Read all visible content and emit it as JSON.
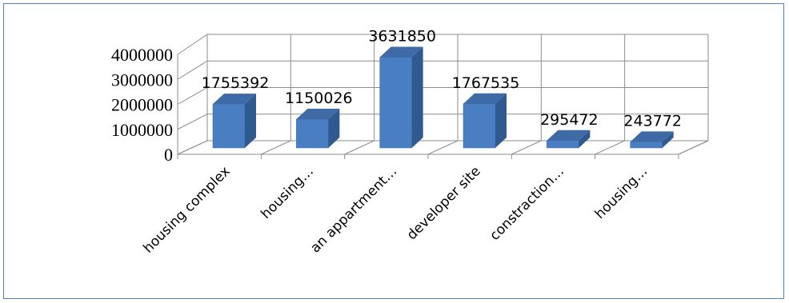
{
  "chart_data": {
    "type": "bar",
    "style": "3d-column",
    "categories": [
      "housing complex",
      "housing…",
      "an appartment…",
      "developer site",
      "constraction…",
      "housing…"
    ],
    "values": [
      1755392,
      1150026,
      3631850,
      1767535,
      295472,
      243772
    ],
    "data_labels": [
      "1755392",
      "1150026",
      "3631850",
      "1767535",
      "295472",
      "243772"
    ],
    "y_ticks": [
      "0",
      "1000000",
      "2000000",
      "3000000",
      "4000000"
    ],
    "ylim": [
      0,
      4000000
    ],
    "grid": true,
    "legend": "none",
    "colors": {
      "bar_front": "#4a7ec2",
      "bar_side": "#2f5a8f",
      "bar_top": "#3e6aa6",
      "grid": "#8c8c8c",
      "frame": "#4f81bd"
    }
  }
}
